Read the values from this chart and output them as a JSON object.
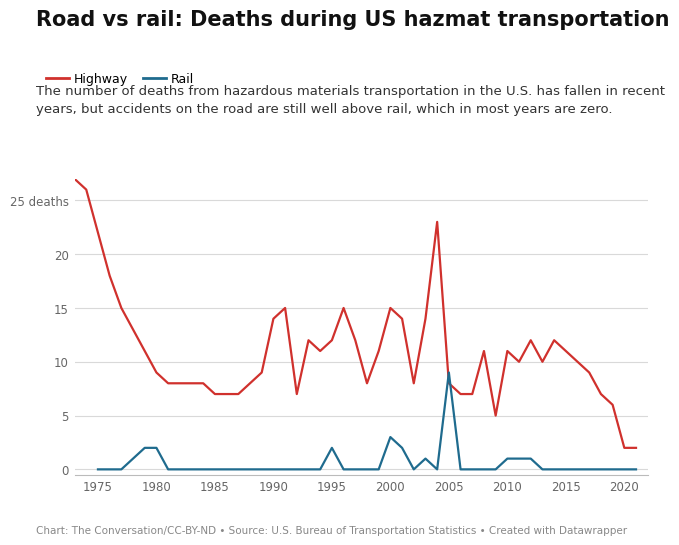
{
  "title": "Road vs rail: Deaths during US hazmat transportation",
  "subtitle": "The number of deaths from hazardous materials transportation in the U.S. has fallen in recent\nyears, but accidents on the road are still well above rail, which in most years are zero.",
  "footer": "Chart: The Conversation/CC-BY-ND • Source: U.S. Bureau of Transportation Statistics • Created with Datawrapper",
  "legend": [
    {
      "label": "Highway",
      "color": "#d0312d"
    },
    {
      "label": "Rail",
      "color": "#1f6b8e"
    }
  ],
  "highway_years": [
    1973,
    1974,
    1975,
    1976,
    1977,
    1978,
    1979,
    1980,
    1981,
    1982,
    1983,
    1984,
    1985,
    1986,
    1987,
    1988,
    1989,
    1990,
    1991,
    1992,
    1993,
    1994,
    1995,
    1996,
    1997,
    1998,
    1999,
    2000,
    2001,
    2002,
    2003,
    2004,
    2005,
    2006,
    2007,
    2008,
    2009,
    2010,
    2011,
    2012,
    2013,
    2014,
    2015,
    2016,
    2017,
    2018,
    2019,
    2020,
    2021
  ],
  "highway_deaths": [
    27,
    26,
    22,
    18,
    15,
    13,
    11,
    9,
    8,
    8,
    8,
    8,
    7,
    7,
    7,
    8,
    9,
    14,
    15,
    7,
    12,
    11,
    12,
    15,
    12,
    8,
    11,
    15,
    14,
    8,
    14,
    23,
    8,
    7,
    7,
    11,
    5,
    11,
    10,
    12,
    10,
    12,
    11,
    10,
    9,
    7,
    6,
    2,
    2
  ],
  "rail_years": [
    1975,
    1976,
    1977,
    1978,
    1979,
    1980,
    1981,
    1982,
    1983,
    1984,
    1985,
    1986,
    1987,
    1988,
    1989,
    1990,
    1991,
    1992,
    1993,
    1994,
    1995,
    1996,
    1997,
    1998,
    1999,
    2000,
    2001,
    2002,
    2003,
    2004,
    2005,
    2006,
    2007,
    2008,
    2009,
    2010,
    2011,
    2012,
    2013,
    2014,
    2015,
    2016,
    2017,
    2018,
    2019,
    2020,
    2021
  ],
  "rail_deaths": [
    0,
    0,
    0,
    1,
    2,
    2,
    0,
    0,
    0,
    0,
    0,
    0,
    0,
    0,
    0,
    0,
    0,
    0,
    0,
    0,
    2,
    0,
    0,
    0,
    0,
    3,
    2,
    0,
    1,
    0,
    9,
    0,
    0,
    0,
    0,
    1,
    1,
    1,
    0,
    0,
    0,
    0,
    0,
    0,
    0,
    0,
    0
  ],
  "ylim": [
    -0.5,
    27
  ],
  "yticks": [
    0,
    5,
    10,
    15,
    20,
    25
  ],
  "ytick_labels": [
    "0",
    "5",
    "10",
    "15",
    "20",
    "25 deaths"
  ],
  "xlim": [
    1973,
    2022
  ],
  "xticks": [
    1975,
    1980,
    1985,
    1990,
    1995,
    2000,
    2005,
    2010,
    2015,
    2020
  ],
  "highway_color": "#d0312d",
  "rail_color": "#1f6b8e",
  "background_color": "#ffffff",
  "grid_color": "#d9d9d9",
  "title_fontsize": 15,
  "subtitle_fontsize": 9.5,
  "footer_fontsize": 7.5,
  "axis_label_color": "#666666",
  "tick_label_color": "#666666"
}
